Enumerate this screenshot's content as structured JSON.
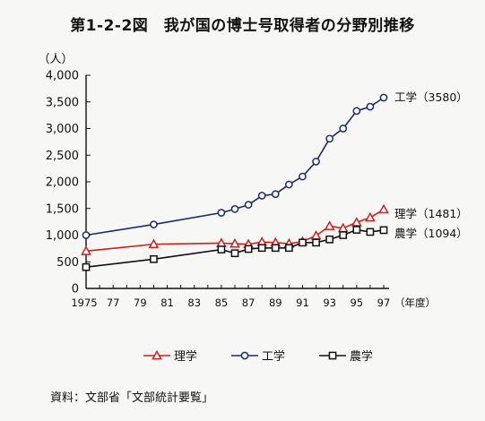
{
  "title": "第1-2-2図　我が国の博士号取得者の分野別推移",
  "source": "資料：文部省「文部統計要覧」",
  "chart_data": {
    "type": "line",
    "unit_label": "（人）",
    "x_axis_suffix": "（年度）",
    "ylim": [
      0,
      4000
    ],
    "y_ticks": [
      "0",
      "500",
      "1,000",
      "1,500",
      "2,000",
      "2,500",
      "3,000",
      "3,500",
      "4,000"
    ],
    "y_tick_values": [
      0,
      500,
      1000,
      1500,
      2000,
      2500,
      3000,
      3500,
      4000
    ],
    "x_tick_labels": [
      "1975",
      "77",
      "79",
      "81",
      "83",
      "85",
      "87",
      "89",
      "91",
      "93",
      "95",
      "97"
    ],
    "x_tick_years": [
      1975,
      1977,
      1979,
      1981,
      1983,
      1985,
      1987,
      1989,
      1991,
      1993,
      1995,
      1997
    ],
    "xlim": [
      1975,
      1997
    ],
    "grid": false,
    "legend_position": "bottom",
    "series": [
      {
        "key": "rigaku",
        "name": "理学",
        "color": "#cc1f1f",
        "marker": "triangle",
        "end_label": "理学（1481）",
        "x": [
          1975,
          1980,
          1985,
          1986,
          1987,
          1988,
          1989,
          1990,
          1991,
          1992,
          1993,
          1994,
          1995,
          1996,
          1997
        ],
        "y": [
          700,
          830,
          850,
          840,
          830,
          870,
          860,
          840,
          880,
          990,
          1170,
          1130,
          1240,
          1330,
          1481
        ]
      },
      {
        "key": "kogaku",
        "name": "工学",
        "color": "#1a2a6c",
        "marker": "circle",
        "end_label": "工学（3580）",
        "x": [
          1975,
          1980,
          1985,
          1986,
          1987,
          1988,
          1989,
          1990,
          1991,
          1992,
          1993,
          1994,
          1995,
          1996,
          1997
        ],
        "y": [
          1000,
          1200,
          1420,
          1490,
          1570,
          1740,
          1770,
          1950,
          2100,
          2380,
          2810,
          3000,
          3330,
          3410,
          3580
        ]
      },
      {
        "key": "nogaku",
        "name": "農学",
        "color": "#111111",
        "marker": "square",
        "end_label": "農学（1094）",
        "x": [
          1975,
          1980,
          1985,
          1986,
          1987,
          1988,
          1989,
          1990,
          1991,
          1992,
          1993,
          1994,
          1995,
          1996,
          1997
        ],
        "y": [
          400,
          550,
          730,
          660,
          740,
          760,
          760,
          760,
          860,
          860,
          920,
          1000,
          1100,
          1060,
          1094
        ]
      }
    ]
  }
}
